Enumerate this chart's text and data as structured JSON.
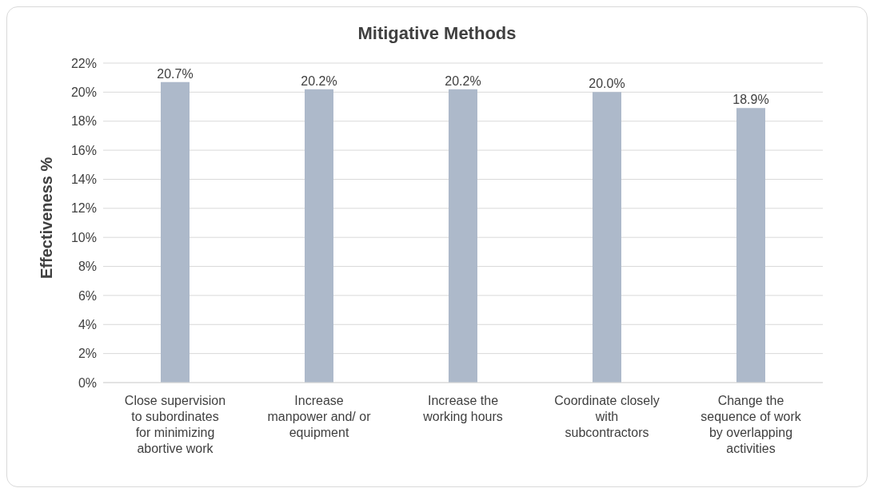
{
  "chart_data": {
    "type": "bar",
    "title": "Mitigative Methods",
    "ylabel": "Effectiveness %",
    "categories": [
      "Close supervision\nto subordinates\nfor minimizing\nabortive work",
      "Increase\nmanpower and/ or\nequipment",
      "Increase the\nworking hours",
      "Coordinate closely\nwith\nsubcontractors",
      "Change the\nsequence of work\nby overlapping\nactivities"
    ],
    "values": [
      20.7,
      20.2,
      20.2,
      20.0,
      18.9
    ],
    "value_labels": [
      "20.7%",
      "20.2%",
      "20.2%",
      "20.0%",
      "18.9%"
    ],
    "color": "#adb9ca",
    "ylim": [
      0,
      22
    ],
    "yticks": [
      {
        "value": 0,
        "label": "0%"
      },
      {
        "value": 2,
        "label": "2%"
      },
      {
        "value": 4,
        "label": "4%"
      },
      {
        "value": 6,
        "label": "6%"
      },
      {
        "value": 8,
        "label": "8%"
      },
      {
        "value": 10,
        "label": "10%"
      },
      {
        "value": 12,
        "label": "12%"
      },
      {
        "value": 14,
        "label": "14%"
      },
      {
        "value": 16,
        "label": "16%"
      },
      {
        "value": 18,
        "label": "18%"
      },
      {
        "value": 20,
        "label": "20%"
      },
      {
        "value": 22,
        "label": "22%"
      }
    ],
    "grid": "y",
    "legend": false
  }
}
